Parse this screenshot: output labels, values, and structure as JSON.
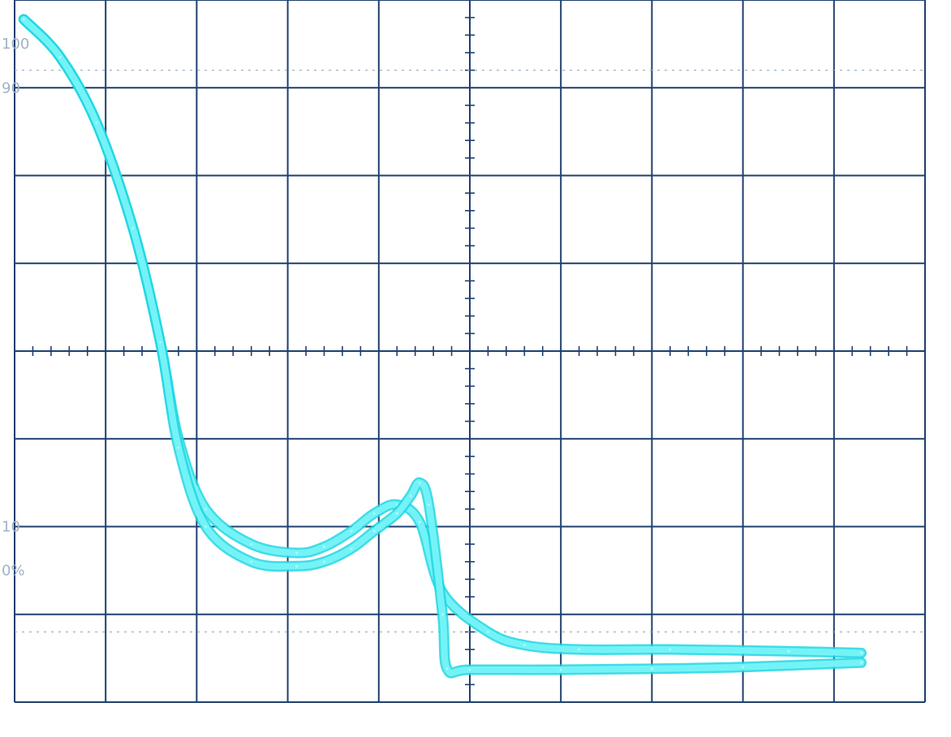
{
  "chart_data": {
    "type": "line",
    "title": "",
    "xlabel": "",
    "ylabel": "",
    "x_divisions": 10,
    "y_divisions": 8,
    "xlim": [
      0,
      10
    ],
    "ylim": [
      0,
      8
    ],
    "grid": true,
    "graticule_markers": [
      "100",
      "90",
      "10",
      "0%"
    ],
    "series": [
      {
        "x": [
          0.1,
          0.5,
          0.9,
          1.3,
          1.6,
          1.8,
          2.1,
          2.6,
          3.1,
          3.4,
          3.7,
          3.95,
          4.2,
          4.45,
          4.7,
          5.2,
          5.6,
          6.2,
          7.2,
          8.5,
          9.3
        ],
        "y": [
          7.78,
          7.35,
          6.6,
          5.4,
          4.1,
          3.0,
          2.2,
          1.8,
          1.7,
          1.77,
          1.95,
          2.15,
          2.25,
          2.05,
          1.25,
          0.8,
          0.65,
          0.6,
          0.6,
          0.58,
          0.56
        ]
      },
      {
        "x": [
          0.1,
          0.5,
          0.9,
          1.3,
          1.6,
          1.8,
          2.1,
          2.6,
          3.1,
          3.4,
          3.7,
          3.95,
          4.2,
          4.35,
          4.45,
          4.55,
          4.7,
          4.75,
          5.0,
          6.0,
          7.0,
          8.0,
          9.3
        ],
        "y": [
          7.78,
          7.35,
          6.6,
          5.4,
          4.1,
          2.9,
          2.0,
          1.6,
          1.55,
          1.6,
          1.75,
          1.95,
          2.15,
          2.35,
          2.5,
          2.25,
          1.0,
          0.38,
          0.37,
          0.37,
          0.38,
          0.4,
          0.45
        ]
      }
    ]
  }
}
